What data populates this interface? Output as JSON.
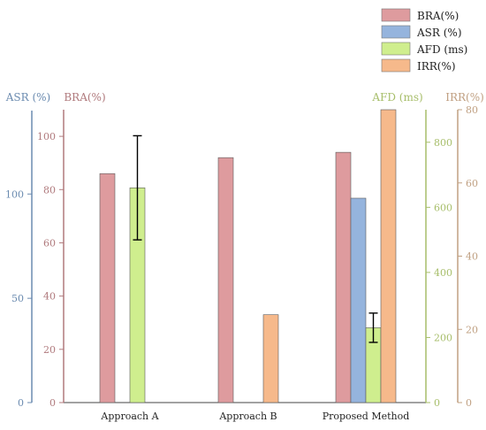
{
  "chart_data": {
    "type": "bar",
    "categories": [
      "Approach A",
      "Approach B",
      "Proposed Method"
    ],
    "series": [
      {
        "name": "BRA(%)",
        "axis": "BRA",
        "color": "#de9b9e",
        "values": [
          86,
          92,
          94
        ]
      },
      {
        "name": "ASR (%)",
        "axis": "ASR",
        "color": "#95b4dd",
        "values": [
          null,
          null,
          98
        ]
      },
      {
        "name": "AFD (ms)",
        "axis": "AFD",
        "color": "#cfee8e",
        "values": [
          660,
          null,
          230
        ],
        "error": [
          160,
          null,
          45
        ]
      },
      {
        "name": "IRR(%)",
        "axis": "IRR",
        "color": "#f6b98b",
        "values": [
          null,
          24,
          80
        ]
      }
    ],
    "axes": {
      "ASR": {
        "title": "ASR (%)",
        "ylim": [
          0,
          140
        ],
        "ticks": [
          0,
          50,
          100
        ],
        "color": "#6b8bb0",
        "side": "left"
      },
      "BRA": {
        "title": "BRA(%)",
        "ylim": [
          0,
          110
        ],
        "ticks": [
          0,
          20,
          40,
          60,
          80,
          100
        ],
        "color": "#b07a7d",
        "side": "left"
      },
      "AFD": {
        "title": "AFD (ms)",
        "ylim": [
          0,
          900
        ],
        "ticks": [
          0,
          200,
          400,
          600,
          800
        ],
        "color": "#a7be6a",
        "side": "right"
      },
      "IRR": {
        "title": "IRR(%)",
        "ylim": [
          0,
          80
        ],
        "ticks": [
          0,
          20,
          40,
          60,
          80
        ],
        "color": "#c0a082",
        "side": "right"
      }
    },
    "legend_position": "top-right",
    "grid": false
  }
}
